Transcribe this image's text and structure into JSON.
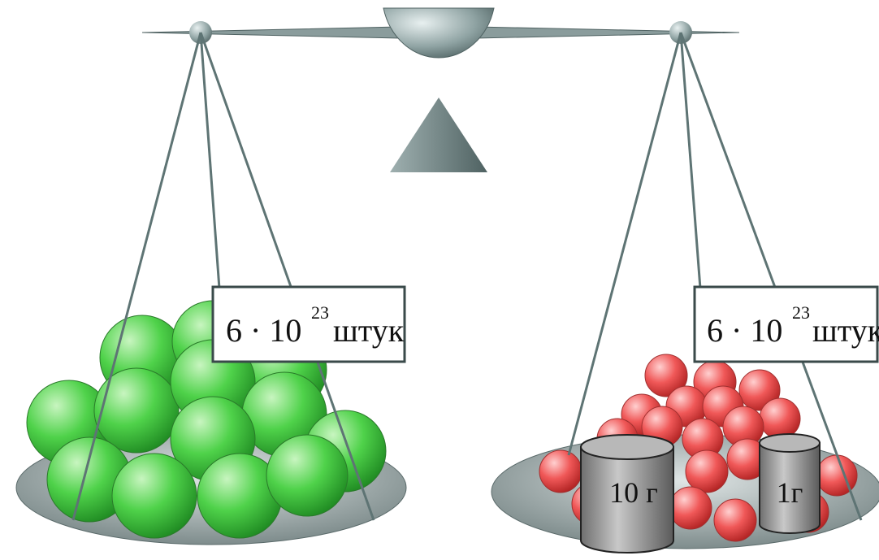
{
  "left_label": {
    "base": "6 · 10",
    "exponent": "23",
    "unit": "штук"
  },
  "right_label": {
    "base": "6 · 10",
    "exponent": "23",
    "unit": "штук"
  },
  "weights": [
    "10 г",
    "1г"
  ]
}
